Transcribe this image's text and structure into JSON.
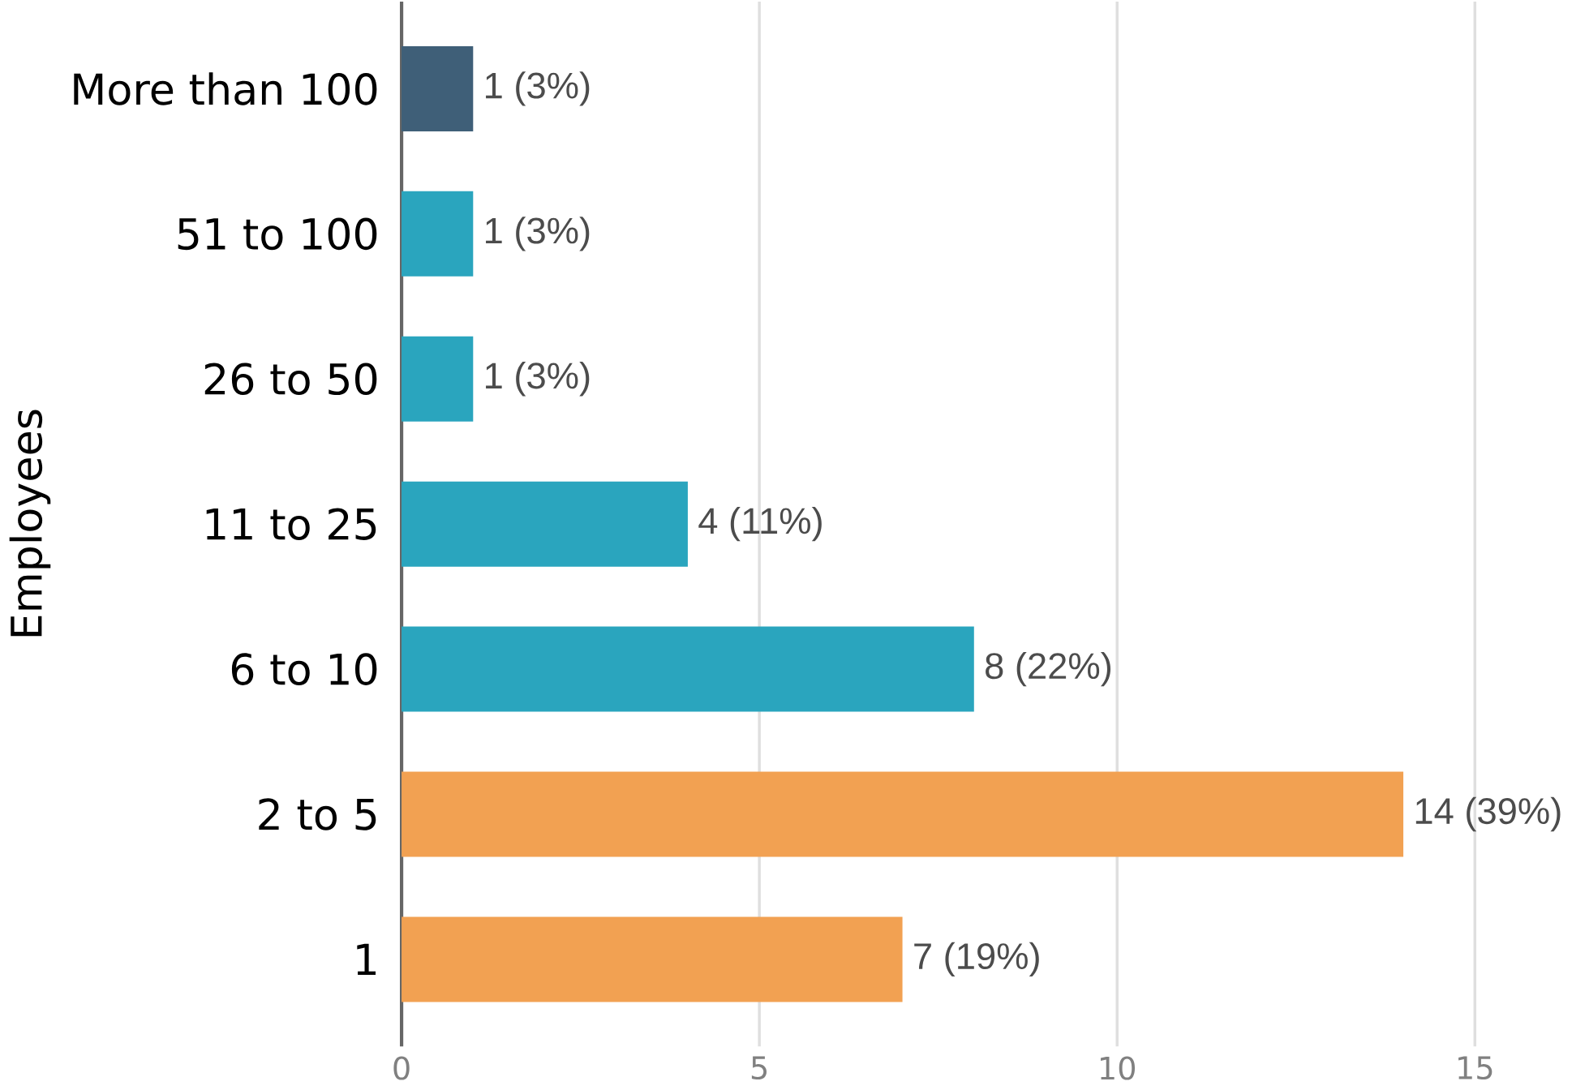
{
  "chart_data": {
    "type": "bar",
    "orientation": "horizontal",
    "ylabel": "Employees",
    "categories": [
      "More than 100",
      "51 to 100",
      "26 to 50",
      "11 to 25",
      "6 to 10",
      "2 to 5",
      "1"
    ],
    "values": [
      1,
      1,
      1,
      4,
      8,
      14,
      7
    ],
    "colors": [
      "#3f5f78",
      "#2aa5be",
      "#2aa5be",
      "#2aa5be",
      "#2aa5be",
      "#f2a152",
      "#f2a152"
    ],
    "value_labels": [
      "1 (3%)",
      "1 (3%)",
      "1 (3%)",
      "4 (11%)",
      "8 (22%)",
      "14 (39%)",
      "7 (19%)"
    ],
    "xlim": [
      0,
      15
    ],
    "xticks": [
      0,
      5,
      10,
      15
    ],
    "grid": "x"
  }
}
